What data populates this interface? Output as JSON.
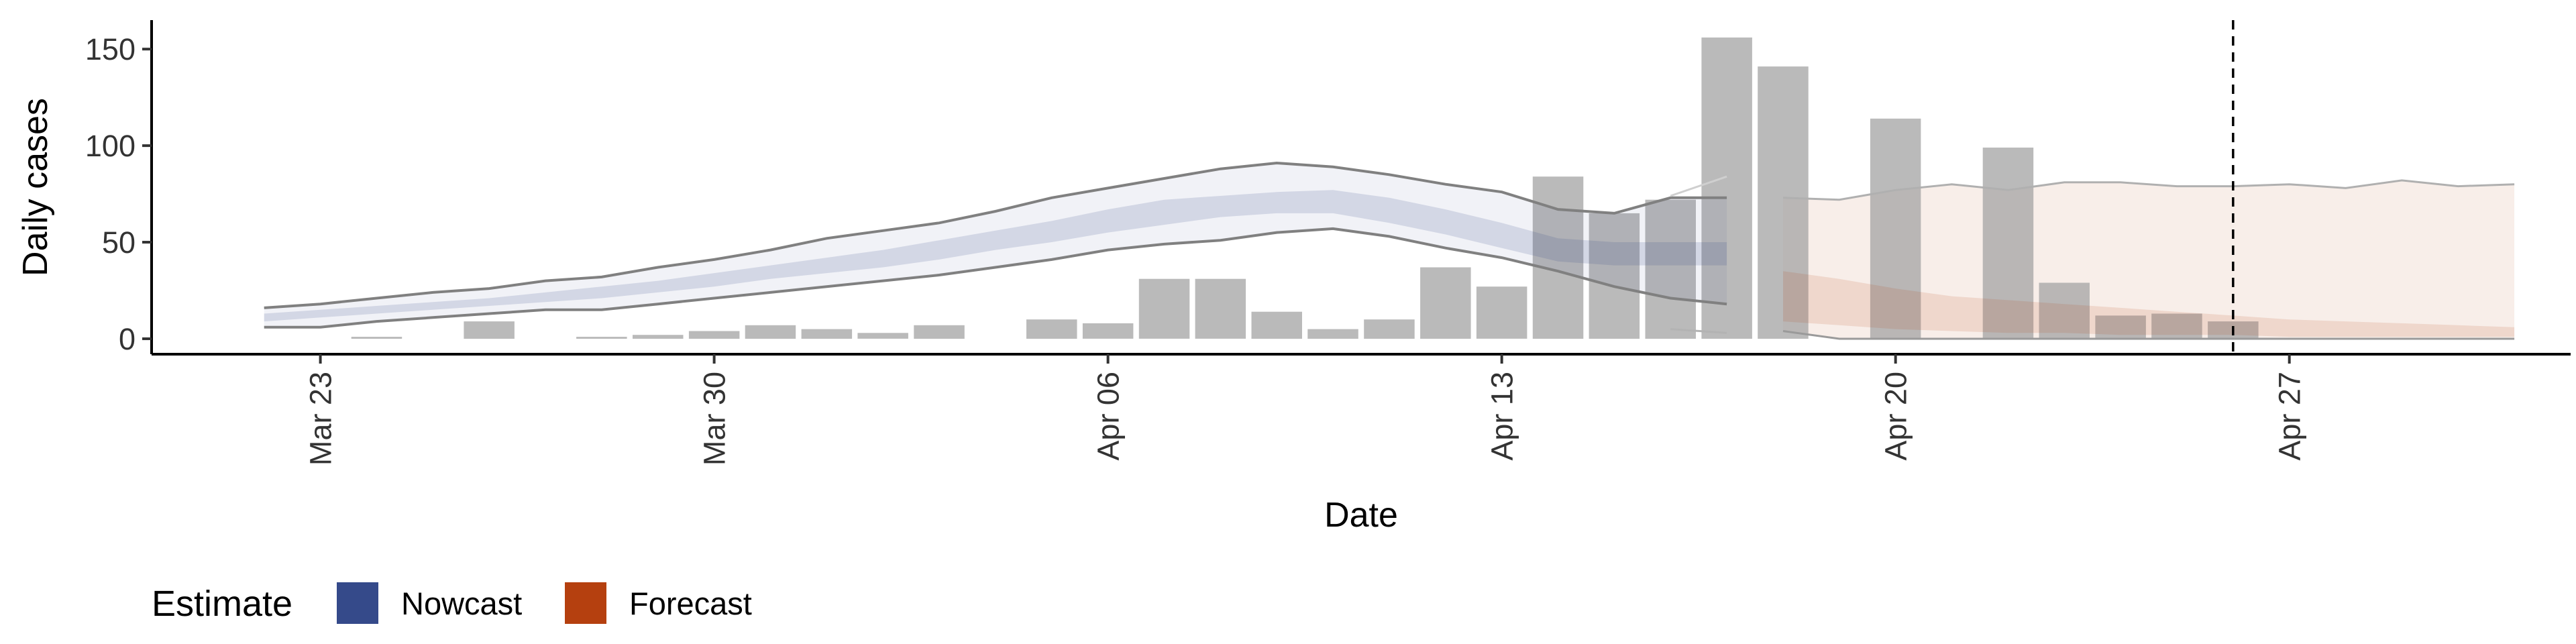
{
  "chart_data": {
    "type": "bar",
    "xlabel": "Date",
    "ylabel": "Daily cases",
    "x_axis_type": "date",
    "xlim": [
      "2020-03-20",
      "2020-05-02"
    ],
    "ylim": [
      -8,
      165
    ],
    "x_ticks": [
      {
        "date": "2020-03-23",
        "label": "Mar 23"
      },
      {
        "date": "2020-03-30",
        "label": "Mar 30"
      },
      {
        "date": "2020-04-06",
        "label": "Apr 06"
      },
      {
        "date": "2020-04-13",
        "label": "Apr 13"
      },
      {
        "date": "2020-04-20",
        "label": "Apr 20"
      },
      {
        "date": "2020-04-27",
        "label": "Apr 27"
      }
    ],
    "y_ticks": [
      0,
      50,
      100,
      150
    ],
    "grid": false,
    "reference_line": {
      "date": "2020-04-26",
      "style": "dashed"
    },
    "bars": [
      {
        "date": "2020-03-24",
        "value": 1
      },
      {
        "date": "2020-03-26",
        "value": 9
      },
      {
        "date": "2020-03-28",
        "value": 1
      },
      {
        "date": "2020-03-29",
        "value": 2
      },
      {
        "date": "2020-03-30",
        "value": 4
      },
      {
        "date": "2020-03-31",
        "value": 7
      },
      {
        "date": "2020-04-01",
        "value": 5
      },
      {
        "date": "2020-04-02",
        "value": 3
      },
      {
        "date": "2020-04-03",
        "value": 7
      },
      {
        "date": "2020-04-05",
        "value": 10
      },
      {
        "date": "2020-04-06",
        "value": 8
      },
      {
        "date": "2020-04-07",
        "value": 31
      },
      {
        "date": "2020-04-08",
        "value": 31
      },
      {
        "date": "2020-04-09",
        "value": 14
      },
      {
        "date": "2020-04-10",
        "value": 5
      },
      {
        "date": "2020-04-11",
        "value": 10
      },
      {
        "date": "2020-04-12",
        "value": 37
      },
      {
        "date": "2020-04-13",
        "value": 27
      },
      {
        "date": "2020-04-14",
        "value": 84
      },
      {
        "date": "2020-04-15",
        "value": 65
      },
      {
        "date": "2020-04-16",
        "value": 72
      },
      {
        "date": "2020-04-17",
        "value": 156
      },
      {
        "date": "2020-04-18",
        "value": 141
      },
      {
        "date": "2020-04-20",
        "value": 114
      },
      {
        "date": "2020-04-22",
        "value": 99
      },
      {
        "date": "2020-04-23",
        "value": 29
      },
      {
        "date": "2020-04-24",
        "value": 12
      },
      {
        "date": "2020-04-25",
        "value": 13
      },
      {
        "date": "2020-04-26",
        "value": 9
      }
    ],
    "series": [
      {
        "name": "Nowcast",
        "color": "#354a8a",
        "dates": [
          "2020-03-22",
          "2020-03-23",
          "2020-03-24",
          "2020-03-25",
          "2020-03-26",
          "2020-03-27",
          "2020-03-28",
          "2020-03-29",
          "2020-03-30",
          "2020-03-31",
          "2020-04-01",
          "2020-04-02",
          "2020-04-03",
          "2020-04-04",
          "2020-04-05",
          "2020-04-06",
          "2020-04-07",
          "2020-04-08",
          "2020-04-09",
          "2020-04-10",
          "2020-04-11",
          "2020-04-12",
          "2020-04-13",
          "2020-04-14",
          "2020-04-15",
          "2020-04-16",
          "2020-04-17"
        ],
        "lower90": [
          6,
          6,
          9,
          11,
          13,
          15,
          15,
          18,
          21,
          24,
          27,
          30,
          33,
          37,
          41,
          46,
          49,
          51,
          55,
          57,
          53,
          47,
          42,
          35,
          27,
          21,
          18
        ],
        "upper90": [
          16,
          18,
          21,
          24,
          26,
          30,
          32,
          37,
          41,
          46,
          52,
          56,
          60,
          66,
          73,
          78,
          83,
          88,
          91,
          89,
          85,
          80,
          76,
          67,
          65,
          73,
          73
        ],
        "lower50": [
          9,
          11,
          13,
          15,
          17,
          19,
          21,
          24,
          27,
          31,
          34,
          37,
          41,
          46,
          50,
          55,
          59,
          63,
          65,
          65,
          60,
          54,
          47,
          40,
          38,
          38,
          38
        ],
        "upper50": [
          13,
          15,
          17,
          19,
          21,
          24,
          27,
          30,
          34,
          38,
          42,
          46,
          51,
          56,
          61,
          67,
          72,
          74,
          76,
          77,
          73,
          67,
          60,
          52,
          50,
          50,
          50
        ],
        "thin_lower": [
          null,
          null,
          null,
          null,
          null,
          null,
          null,
          null,
          null,
          null,
          null,
          null,
          null,
          null,
          null,
          null,
          null,
          null,
          null,
          null,
          null,
          null,
          null,
          null,
          null,
          5,
          3
        ],
        "thin_upper": [
          null,
          null,
          null,
          null,
          null,
          null,
          null,
          null,
          null,
          null,
          null,
          null,
          null,
          null,
          null,
          null,
          null,
          null,
          null,
          null,
          null,
          null,
          null,
          null,
          null,
          74,
          84
        ]
      },
      {
        "name": "Forecast",
        "color": "#b5400f",
        "dates": [
          "2020-04-18",
          "2020-04-19",
          "2020-04-20",
          "2020-04-21",
          "2020-04-22",
          "2020-04-23",
          "2020-04-24",
          "2020-04-25",
          "2020-04-26",
          "2020-04-27",
          "2020-04-28",
          "2020-04-29",
          "2020-04-30",
          "2020-05-01"
        ],
        "lower90": [
          4,
          0,
          0,
          0,
          0,
          0,
          0,
          0,
          0,
          0,
          0,
          0,
          0,
          0
        ],
        "upper90": [
          73,
          72,
          77,
          80,
          77,
          81,
          81,
          79,
          79,
          80,
          78,
          82,
          79,
          80
        ],
        "lower50": [
          9,
          7,
          5,
          4,
          3,
          3,
          2,
          2,
          2,
          1,
          1,
          1,
          1,
          1
        ],
        "upper50": [
          35,
          31,
          26,
          22,
          20,
          18,
          16,
          14,
          12,
          10,
          9,
          8,
          7,
          6
        ]
      }
    ],
    "legend": {
      "title": "Estimate",
      "position": "bottom-left",
      "items": [
        "Nowcast",
        "Forecast"
      ]
    }
  }
}
